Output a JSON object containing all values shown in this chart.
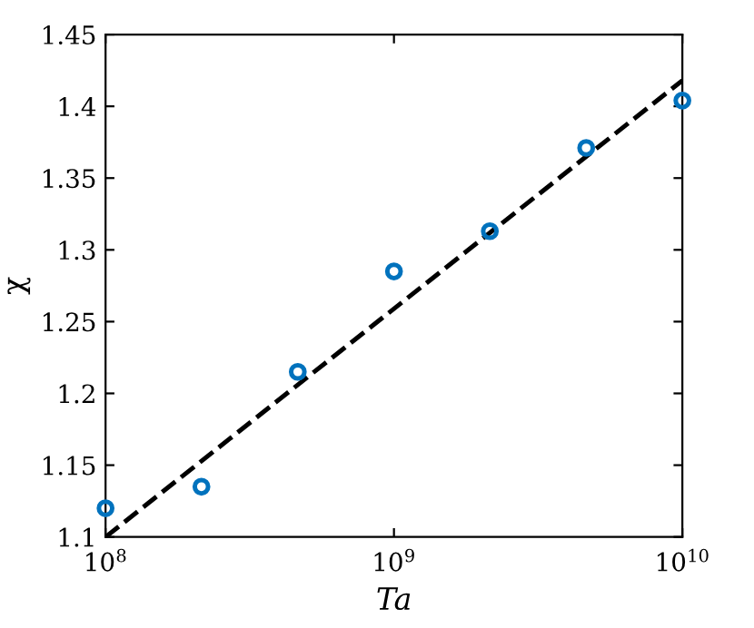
{
  "chart_data": {
    "type": "scatter",
    "xlabel": "Ta",
    "ylabel": "χ",
    "log": "x",
    "xlim": [
      100000000,
      10000000000
    ],
    "ylim": [
      1.1,
      1.45
    ],
    "xticks": [
      {
        "value": 100000000,
        "label": "10$^{8}$"
      },
      {
        "value": 1000000000,
        "label": "10$^{9}$"
      },
      {
        "value": 10000000000,
        "label": "10$^{10}$"
      }
    ],
    "yticks": [
      1.1,
      1.15,
      1.2,
      1.25,
      1.3,
      1.35,
      1.4,
      1.45
    ],
    "grid": false,
    "legend": false,
    "marker": "circle",
    "series": [
      {
        "color": "#0072bd",
        "x": [
          100000000,
          215000000,
          464000000,
          1000000000,
          2150000000,
          4640000000,
          10000000000
        ],
        "values": [
          1.12,
          1.135,
          1.215,
          1.285,
          1.313,
          1.371,
          1.404
        ]
      },
      {
        "type": "line",
        "color": "#000000",
        "line_style": "dashed",
        "marker": "none",
        "x": [
          100000000,
          10000000000
        ],
        "values": [
          1.1,
          1.418
        ]
      }
    ]
  }
}
